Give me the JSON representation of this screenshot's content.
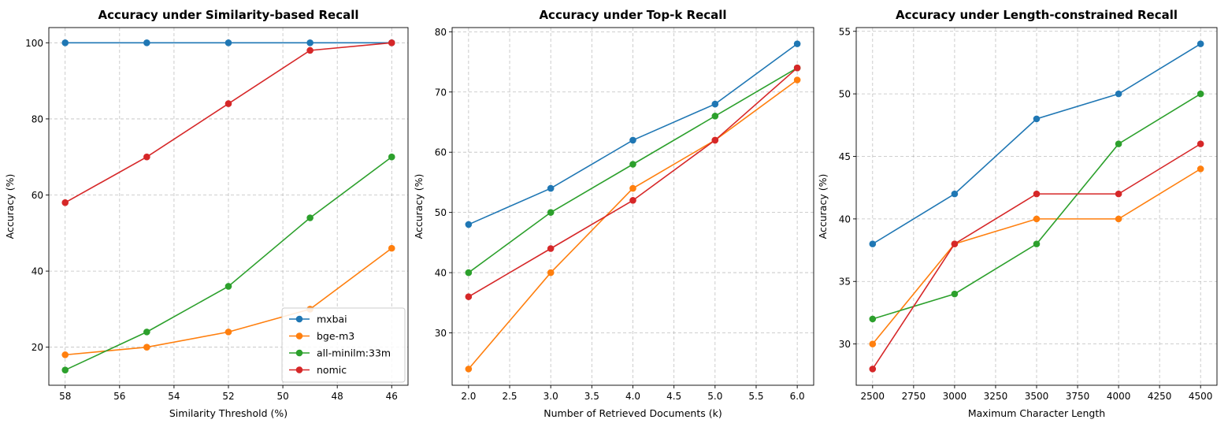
{
  "chart_data": [
    {
      "type": "line",
      "title": "Accuracy under Similarity-based Recall",
      "xlabel": "Similarity Threshold (%)",
      "ylabel": "Accuracy (%)",
      "x": [
        58,
        55,
        52,
        49,
        46
      ],
      "xlim": [
        58.6,
        45.4
      ],
      "ylim": [
        10,
        104
      ],
      "xticks": [
        58,
        56,
        54,
        52,
        50,
        48,
        46
      ],
      "yticks": [
        20,
        40,
        60,
        80,
        100
      ],
      "grid": true,
      "legend": "lower-right",
      "series": [
        {
          "name": "mxbai",
          "color": "#1f77b4",
          "values": [
            100,
            100,
            100,
            100,
            100
          ]
        },
        {
          "name": "bge-m3",
          "color": "#ff7f0e",
          "values": [
            18,
            20,
            24,
            30,
            46
          ]
        },
        {
          "name": "all-minilm:33m",
          "color": "#2ca02c",
          "values": [
            14,
            24,
            36,
            54,
            70
          ]
        },
        {
          "name": "nomic",
          "color": "#d62728",
          "values": [
            58,
            70,
            84,
            98,
            100
          ]
        }
      ]
    },
    {
      "type": "line",
      "title": "Accuracy under Top-k Recall",
      "xlabel": "Number of Retrieved Documents (k)",
      "ylabel": "Accuracy (%)",
      "x": [
        2.0,
        3.0,
        4.0,
        5.0,
        6.0
      ],
      "xlim": [
        1.8,
        6.2
      ],
      "ylim": [
        21.3,
        80.7
      ],
      "xticks": [
        "2.0",
        "2.5",
        "3.0",
        "3.5",
        "4.0",
        "4.5",
        "5.0",
        "5.5",
        "6.0"
      ],
      "yticks": [
        30,
        40,
        50,
        60,
        70,
        80
      ],
      "grid": true,
      "series": [
        {
          "name": "mxbai",
          "color": "#1f77b4",
          "values": [
            48,
            54,
            62,
            68,
            78
          ]
        },
        {
          "name": "bge-m3",
          "color": "#ff7f0e",
          "values": [
            24,
            40,
            54,
            62,
            72
          ]
        },
        {
          "name": "all-minilm:33m",
          "color": "#2ca02c",
          "values": [
            40,
            50,
            58,
            66,
            74
          ]
        },
        {
          "name": "nomic",
          "color": "#d62728",
          "values": [
            36,
            44,
            52,
            62,
            74
          ]
        }
      ]
    },
    {
      "type": "line",
      "title": "Accuracy under Length-constrained Recall",
      "xlabel": "Maximum Character Length",
      "ylabel": "Accuracy (%)",
      "x": [
        2500,
        3000,
        3500,
        4000,
        4500
      ],
      "xlim": [
        2400,
        4600
      ],
      "ylim": [
        26.7,
        55.3
      ],
      "xticks": [
        2500,
        2750,
        3000,
        3250,
        3500,
        3750,
        4000,
        4250,
        4500
      ],
      "yticks": [
        30,
        35,
        40,
        45,
        50,
        55
      ],
      "grid": true,
      "series": [
        {
          "name": "mxbai",
          "color": "#1f77b4",
          "values": [
            38,
            42,
            48,
            50,
            54
          ]
        },
        {
          "name": "bge-m3",
          "color": "#ff7f0e",
          "values": [
            30,
            38,
            40,
            40,
            44
          ]
        },
        {
          "name": "all-minilm:33m",
          "color": "#2ca02c",
          "values": [
            32,
            34,
            38,
            46,
            50
          ]
        },
        {
          "name": "nomic",
          "color": "#d62728",
          "values": [
            28,
            38,
            42,
            42,
            46
          ]
        }
      ]
    }
  ]
}
